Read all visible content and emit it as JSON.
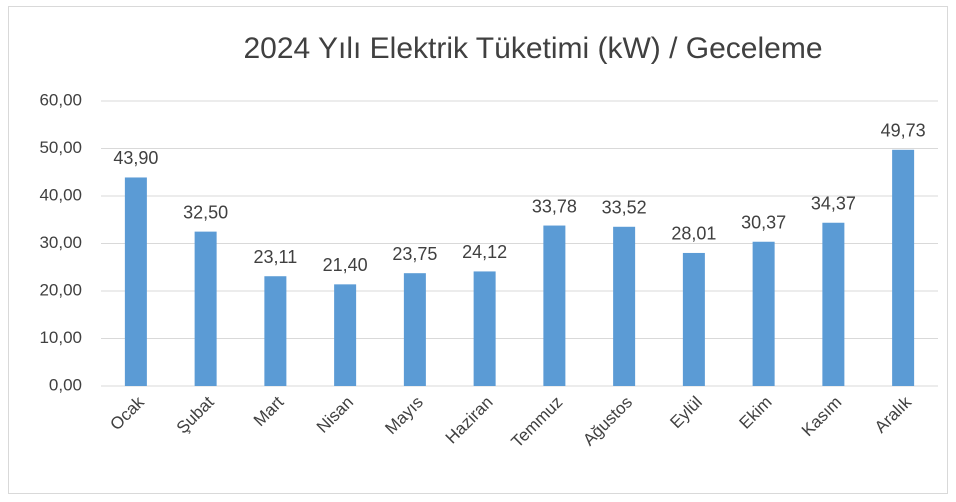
{
  "chart_data": {
    "type": "bar",
    "title": "2024 Yılı Elektrik Tüketimi (kW) / Geceleme",
    "categories": [
      "Ocak",
      "Şubat",
      "Mart",
      "Nisan",
      "Mayıs",
      "Haziran",
      "Temmuz",
      "Ağustos",
      "Eylül",
      "Ekim",
      "Kasım",
      "Aralık"
    ],
    "values": [
      43.9,
      32.5,
      23.11,
      21.4,
      23.75,
      24.12,
      33.78,
      33.52,
      28.01,
      30.37,
      34.37,
      49.73
    ],
    "value_labels": [
      "43,90",
      "32,50",
      "23,11",
      "21,40",
      "23,75",
      "24,12",
      "33,78",
      "33,52",
      "28,01",
      "30,37",
      "34,37",
      "49,73"
    ],
    "color": "#5b9bd5",
    "ylim": [
      0,
      60
    ],
    "yticks": [
      {
        "value": 0,
        "label": "0,00"
      },
      {
        "value": 10,
        "label": "10,00"
      },
      {
        "value": 20,
        "label": "20,00"
      },
      {
        "value": 30,
        "label": "30,00"
      },
      {
        "value": 40,
        "label": "40,00"
      },
      {
        "value": 50,
        "label": "50,00"
      },
      {
        "value": 60,
        "label": "60,00"
      }
    ],
    "grid": true
  }
}
